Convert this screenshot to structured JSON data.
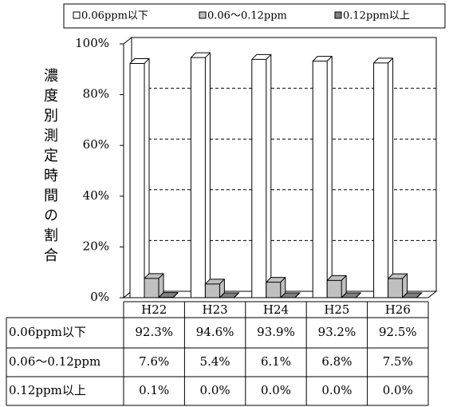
{
  "chart_data": {
    "type": "bar3d",
    "y_label": "濃度別測定時間の割合",
    "categories": [
      "H22",
      "H23",
      "H24",
      "H25",
      "H26"
    ],
    "series": [
      {
        "name": "0.06ppm以下",
        "color": "#ffffff",
        "values": [
          92.3,
          94.6,
          93.9,
          93.2,
          92.5
        ],
        "value_labels": [
          "92.3%",
          "94.6%",
          "93.9%",
          "93.2%",
          "92.5%"
        ]
      },
      {
        "name": "0.06～0.12ppm",
        "color": "#c0c0c0",
        "values": [
          7.6,
          5.4,
          6.1,
          6.8,
          7.5
        ],
        "value_labels": [
          "7.6%",
          "5.4%",
          "6.1%",
          "6.8%",
          "7.5%"
        ]
      },
      {
        "name": "0.12ppm以上",
        "color": "#808080",
        "values": [
          0.1,
          0.0,
          0.0,
          0.0,
          0.0
        ],
        "value_labels": [
          "0.1%",
          "0.0%",
          "0.0%",
          "0.0%",
          "0.0%"
        ]
      }
    ],
    "ylim": [
      0,
      100
    ],
    "yticks": [
      {
        "value": 0,
        "label": "0%"
      },
      {
        "value": 20,
        "label": "20%"
      },
      {
        "value": 40,
        "label": "40%"
      },
      {
        "value": 60,
        "label": "60%"
      },
      {
        "value": 80,
        "label": "80%"
      },
      {
        "value": 100,
        "label": "100%"
      }
    ],
    "grid": true
  }
}
